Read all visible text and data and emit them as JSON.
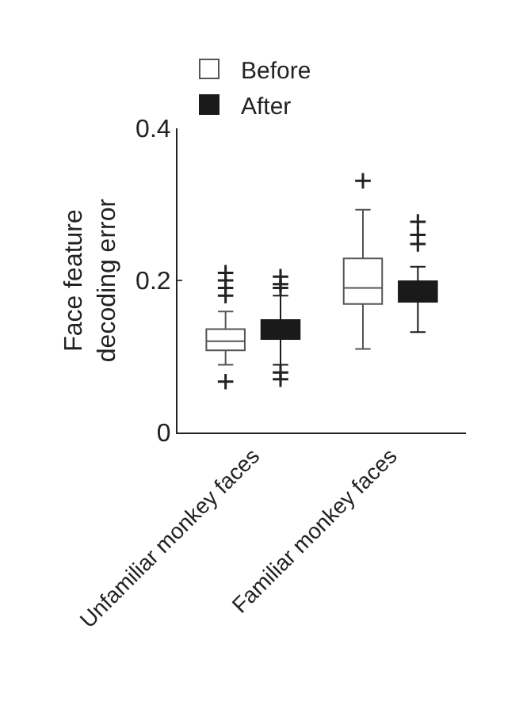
{
  "chart_data": {
    "type": "box",
    "ylabel": "Face feature\ndecoding error",
    "categories": [
      "Unfamiliar monkey faces",
      "Familiar monkey faces"
    ],
    "ylim": [
      0,
      0.4
    ],
    "yticks": [
      0,
      0.2,
      0.4
    ],
    "grid": false,
    "legend": "top left",
    "marker": "cross",
    "series": [
      {
        "name": "Before",
        "color": "#ffffff",
        "boxes": [
          {
            "low": 0.089,
            "q1": 0.108,
            "median": 0.12,
            "q3": 0.136,
            "high": 0.159,
            "outliers": [
              0.18,
              0.19,
              0.2,
              0.21,
              0.067
            ]
          },
          {
            "low": 0.11,
            "q1": 0.169,
            "median": 0.19,
            "q3": 0.229,
            "high": 0.293,
            "outliers": [
              0.331
            ]
          }
        ]
      },
      {
        "name": "After",
        "color": "#1a1a1a",
        "boxes": [
          {
            "low": 0.089,
            "q1": 0.123,
            "median": 0.136,
            "q3": 0.148,
            "high": 0.18,
            "outliers": [
              0.19,
              0.195,
              0.205,
              0.079,
              0.07
            ]
          },
          {
            "low": 0.132,
            "q1": 0.172,
            "median": 0.188,
            "q3": 0.199,
            "high": 0.218,
            "outliers": [
              0.248,
              0.26,
              0.277
            ]
          }
        ]
      }
    ]
  }
}
